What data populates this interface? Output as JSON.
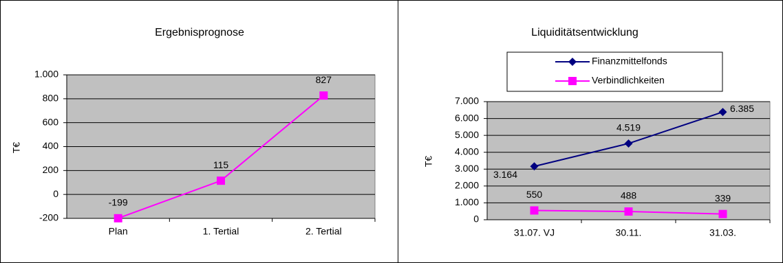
{
  "chart_data": [
    {
      "type": "line",
      "title": "Ergebnisprognose",
      "y_label": "T€",
      "categories": [
        "Plan",
        "1. Tertial",
        "2. Tertial"
      ],
      "series": [
        {
          "name": null,
          "color": "#ff00ff",
          "marker": "square",
          "values": [
            -199,
            115,
            827
          ]
        }
      ],
      "ylim": [
        -200,
        1000
      ],
      "yticks": [
        -200,
        0,
        200,
        400,
        600,
        {
          "value": 800,
          "label": "800"
        },
        {
          "value": 1000,
          "label": "1.000"
        }
      ],
      "grid": true,
      "plot_background": "#c0c0c0"
    },
    {
      "type": "line",
      "title": "Liquiditätsentwicklung",
      "y_label": "T€",
      "categories": [
        "31.07. VJ",
        "30.11.",
        "31.03."
      ],
      "series": [
        {
          "name": "Finanzmittelfonds",
          "color": "#000080",
          "marker": "diamond",
          "values": [
            3164,
            4519,
            6385
          ],
          "value_labels": [
            "3.164",
            "4.519",
            "6.385"
          ]
        },
        {
          "name": "Verbindlichkeiten",
          "color": "#ff00ff",
          "marker": "square",
          "values": [
            550,
            488,
            339
          ]
        }
      ],
      "ylim": [
        0,
        7000
      ],
      "yticks": [
        0,
        {
          "value": 1000,
          "label": "1.000"
        },
        {
          "value": 2000,
          "label": "2.000"
        },
        {
          "value": 3000,
          "label": "3.000"
        },
        {
          "value": 4000,
          "label": "4.000"
        },
        {
          "value": 5000,
          "label": "5.000"
        },
        {
          "value": 6000,
          "label": "6.000"
        },
        {
          "value": 7000,
          "label": "7.000"
        }
      ],
      "grid": true,
      "legend": "top",
      "plot_background": "#c0c0c0"
    }
  ]
}
